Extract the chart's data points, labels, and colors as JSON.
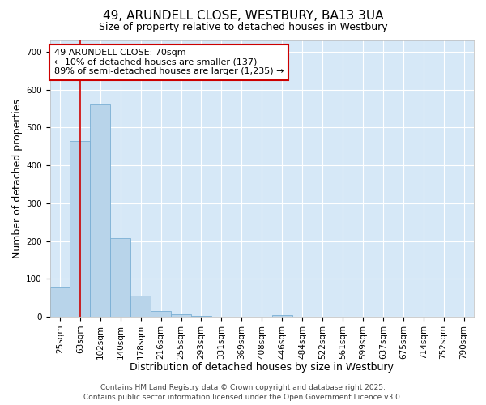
{
  "title": "49, ARUNDELL CLOSE, WESTBURY, BA13 3UA",
  "subtitle": "Size of property relative to detached houses in Westbury",
  "xlabel": "Distribution of detached houses by size in Westbury",
  "ylabel": "Number of detached properties",
  "fig_background_color": "#ffffff",
  "plot_background_color": "#d6e8f7",
  "bar_color": "#b8d4ea",
  "bar_edge_color": "#7aafd4",
  "categories": [
    "25sqm",
    "63sqm",
    "102sqm",
    "140sqm",
    "178sqm",
    "216sqm",
    "255sqm",
    "293sqm",
    "331sqm",
    "369sqm",
    "408sqm",
    "446sqm",
    "484sqm",
    "522sqm",
    "561sqm",
    "599sqm",
    "637sqm",
    "675sqm",
    "714sqm",
    "752sqm",
    "790sqm"
  ],
  "values": [
    80,
    465,
    560,
    207,
    55,
    15,
    7,
    3,
    0,
    0,
    0,
    5,
    0,
    0,
    0,
    0,
    0,
    0,
    0,
    0,
    0
  ],
  "ylim": [
    0,
    730
  ],
  "yticks": [
    0,
    100,
    200,
    300,
    400,
    500,
    600,
    700
  ],
  "vline_x": 1,
  "vline_color": "#cc0000",
  "annotation_line1": "49 ARUNDELL CLOSE: 70sqm",
  "annotation_line2": "← 10% of detached houses are smaller (137)",
  "annotation_line3": "89% of semi-detached houses are larger (1,235) →",
  "annotation_box_facecolor": "#ffffff",
  "annotation_box_edgecolor": "#cc0000",
  "grid_color": "#ffffff",
  "title_fontsize": 11,
  "subtitle_fontsize": 9,
  "xlabel_fontsize": 9,
  "ylabel_fontsize": 9,
  "tick_fontsize": 7.5,
  "annotation_fontsize": 8,
  "footer_fontsize": 6.5,
  "footer_text": "Contains HM Land Registry data © Crown copyright and database right 2025.\nContains public sector information licensed under the Open Government Licence v3.0."
}
